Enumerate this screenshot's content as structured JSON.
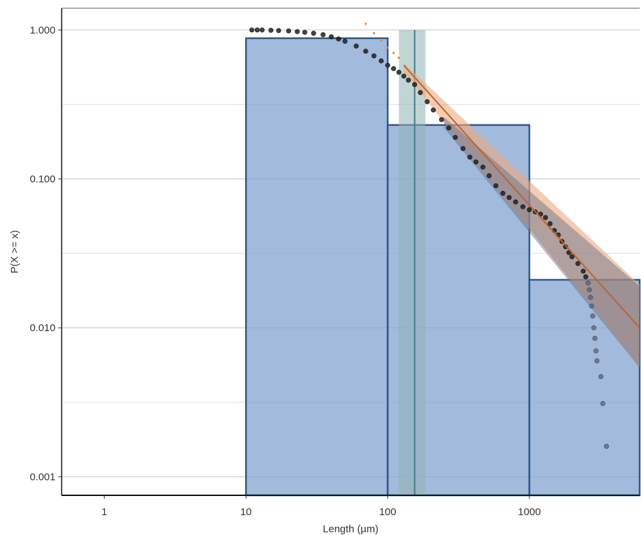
{
  "chart_data": {
    "type": "bar",
    "title": "",
    "xlabel": "Length (µm)",
    "ylabel": "P(X >= x)",
    "x_scale": "log10",
    "y_scale": "log10",
    "xlim": [
      0.5,
      6000
    ],
    "ylim": [
      0.00075,
      1.4
    ],
    "x_ticks": [
      1,
      10,
      100,
      1000
    ],
    "x_tick_labels": [
      "1",
      "10",
      "100",
      "1000"
    ],
    "y_ticks": [
      0.001,
      0.01,
      0.1,
      1
    ],
    "y_tick_labels": [
      "0.001",
      "0.010",
      "0.100",
      "1.000"
    ],
    "grid": "horizontal major and minor",
    "legend": "none",
    "colors": {
      "histogram_fill": "#7ea0cf",
      "histogram_edge": "#2f5788",
      "points": "#222222",
      "fit_line": "#c0622a",
      "fit_band": "#eeaa80",
      "alt_band": "#5f6d85",
      "xmin_line": "#3f7b80",
      "xmin_band": "#8fb3b4",
      "grid": "#cccccc"
    },
    "histogram": [
      {
        "x0": 10,
        "x1": 100,
        "value": 0.88
      },
      {
        "x0": 100,
        "x1": 1000,
        "value": 0.23
      },
      {
        "x0": 1000,
        "x1": 6000,
        "value": 0.021
      }
    ],
    "xmin": {
      "value": 155,
      "lower": 120,
      "upper": 185
    },
    "empirical_ccdf": {
      "x": [
        11,
        12,
        13,
        15,
        17,
        20,
        23,
        26,
        30,
        35,
        40,
        45,
        50,
        60,
        70,
        80,
        90,
        100,
        110,
        120,
        130,
        140,
        155,
        170,
        190,
        210,
        240,
        270,
        300,
        340,
        380,
        420,
        470,
        520,
        580,
        650,
        720,
        800,
        900,
        1000,
        1100,
        1200,
        1300,
        1400,
        1500,
        1600,
        1700,
        1800,
        1900,
        2000,
        2200,
        2400,
        2500,
        2600,
        2650,
        2700,
        2750,
        2800,
        2850,
        2900,
        2950,
        3000,
        3200,
        3300,
        3500
      ],
      "y": [
        1.0,
        1.0,
        1.0,
        0.995,
        0.99,
        0.985,
        0.975,
        0.965,
        0.95,
        0.93,
        0.9,
        0.87,
        0.84,
        0.78,
        0.72,
        0.67,
        0.62,
        0.58,
        0.55,
        0.52,
        0.49,
        0.46,
        0.43,
        0.38,
        0.33,
        0.29,
        0.25,
        0.22,
        0.19,
        0.16,
        0.14,
        0.13,
        0.12,
        0.105,
        0.09,
        0.08,
        0.075,
        0.07,
        0.065,
        0.062,
        0.06,
        0.058,
        0.055,
        0.05,
        0.045,
        0.042,
        0.038,
        0.035,
        0.032,
        0.03,
        0.027,
        0.024,
        0.022,
        0.02,
        0.018,
        0.016,
        0.014,
        0.012,
        0.01,
        0.0085,
        0.007,
        0.006,
        0.0047,
        0.0031,
        0.0016
      ]
    },
    "powerlaw_fit": {
      "x": [
        130,
        6000
      ],
      "y": [
        0.58,
        0.01
      ],
      "band_upper": [
        0.6,
        0.0195
      ],
      "band_lower": [
        0.52,
        0.0055
      ]
    },
    "alt_fit_band": {
      "x": [
        250,
        6000
      ],
      "upper": [
        0.26,
        0.019
      ],
      "lower": [
        0.22,
        0.0054
      ]
    },
    "fit_points_extension": {
      "x": [
        70,
        80,
        90,
        100,
        110,
        120
      ],
      "y": [
        1.1,
        0.95,
        0.85,
        0.76,
        0.7,
        0.65
      ]
    }
  }
}
